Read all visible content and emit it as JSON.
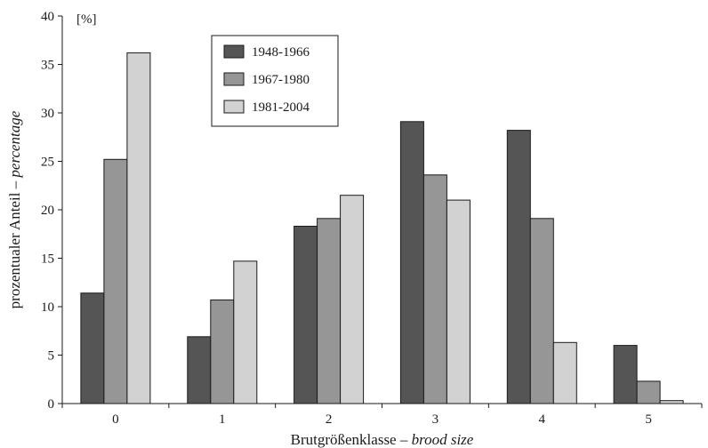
{
  "chart_data": {
    "type": "bar",
    "categories": [
      "0",
      "1",
      "2",
      "3",
      "4",
      "5"
    ],
    "series": [
      {
        "name": "1948-1966",
        "color": "#555555",
        "values": [
          11.4,
          6.9,
          18.3,
          29.1,
          28.2,
          6.0
        ]
      },
      {
        "name": "1967-1980",
        "color": "#969696",
        "values": [
          25.2,
          10.7,
          19.1,
          23.6,
          19.1,
          2.3
        ]
      },
      {
        "name": "1981-2004",
        "color": "#d2d2d2",
        "values": [
          36.2,
          14.7,
          21.5,
          21.0,
          6.3,
          0.3
        ]
      }
    ],
    "ylim": [
      0,
      40
    ],
    "yticks": [
      0,
      5,
      10,
      15,
      20,
      25,
      30,
      35,
      40
    ],
    "y_unit": "[%]",
    "ylabel_plain": "prozentualer Anteil – ",
    "ylabel_italic": "percentage",
    "xlabel_plain": "Brutgrößenklasse – ",
    "xlabel_italic": "brood size",
    "grid": false,
    "legend_position": "top-center"
  }
}
